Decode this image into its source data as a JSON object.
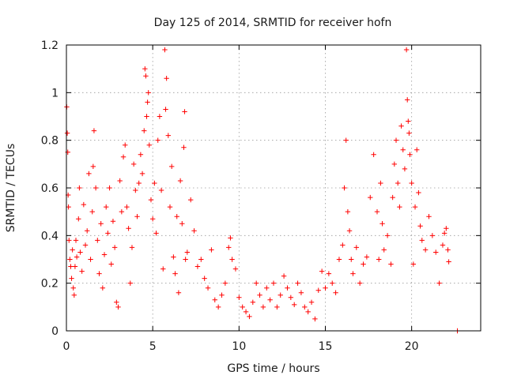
{
  "chart_data": {
    "type": "scatter",
    "title": "Day 125 of 2014, SRMTID for receiver hofn",
    "xlabel": "GPS time / hours",
    "ylabel": "SRMTID / TECUs",
    "xlim": [
      0,
      24
    ],
    "ylim": [
      0,
      1.2
    ],
    "x_ticks": [
      0,
      5,
      10,
      15,
      20
    ],
    "x_tick_labels": [
      "0",
      "5",
      "10",
      "15",
      "20"
    ],
    "y_ticks": [
      0,
      0.2,
      0.4,
      0.6,
      0.8,
      1,
      1.2
    ],
    "y_tick_labels": [
      "0",
      "0.2",
      "0.4",
      "0.6",
      "0.8",
      "1",
      "1.2"
    ],
    "grid": true,
    "marker": "+",
    "color": "#ff0000",
    "series": [
      {
        "name": "SRMTID",
        "points": [
          [
            0.02,
            0.94
          ],
          [
            0.05,
            0.83
          ],
          [
            0.08,
            0.75
          ],
          [
            0.1,
            0.57
          ],
          [
            0.12,
            0.52
          ],
          [
            0.15,
            0.38
          ],
          [
            0.2,
            0.3
          ],
          [
            0.25,
            0.27
          ],
          [
            0.3,
            0.22
          ],
          [
            0.35,
            0.34
          ],
          [
            0.4,
            0.18
          ],
          [
            0.45,
            0.15
          ],
          [
            0.5,
            0.27
          ],
          [
            0.55,
            0.38
          ],
          [
            0.6,
            0.31
          ],
          [
            0.7,
            0.47
          ],
          [
            0.75,
            0.6
          ],
          [
            0.8,
            0.33
          ],
          [
            0.9,
            0.25
          ],
          [
            1.0,
            0.53
          ],
          [
            1.1,
            0.36
          ],
          [
            1.2,
            0.42
          ],
          [
            1.3,
            0.66
          ],
          [
            1.4,
            0.3
          ],
          [
            1.5,
            0.5
          ],
          [
            1.55,
            0.69
          ],
          [
            1.6,
            0.84
          ],
          [
            1.7,
            0.6
          ],
          [
            1.8,
            0.38
          ],
          [
            1.9,
            0.24
          ],
          [
            2.0,
            0.45
          ],
          [
            2.1,
            0.18
          ],
          [
            2.2,
            0.32
          ],
          [
            2.3,
            0.52
          ],
          [
            2.4,
            0.41
          ],
          [
            2.5,
            0.6
          ],
          [
            2.6,
            0.28
          ],
          [
            2.7,
            0.46
          ],
          [
            2.8,
            0.35
          ],
          [
            2.9,
            0.12
          ],
          [
            3.0,
            0.1
          ],
          [
            3.1,
            0.63
          ],
          [
            3.2,
            0.5
          ],
          [
            3.3,
            0.73
          ],
          [
            3.4,
            0.78
          ],
          [
            3.5,
            0.52
          ],
          [
            3.6,
            0.43
          ],
          [
            3.7,
            0.2
          ],
          [
            3.8,
            0.35
          ],
          [
            3.9,
            0.7
          ],
          [
            4.0,
            0.59
          ],
          [
            4.1,
            0.48
          ],
          [
            4.2,
            0.62
          ],
          [
            4.3,
            0.74
          ],
          [
            4.4,
            0.66
          ],
          [
            4.5,
            0.84
          ],
          [
            4.55,
            1.1
          ],
          [
            4.6,
            1.07
          ],
          [
            4.65,
            0.9
          ],
          [
            4.7,
            0.96
          ],
          [
            4.75,
            1.0
          ],
          [
            4.8,
            0.78
          ],
          [
            4.9,
            0.55
          ],
          [
            5.0,
            0.47
          ],
          [
            5.1,
            0.62
          ],
          [
            5.2,
            0.41
          ],
          [
            5.3,
            0.8
          ],
          [
            5.4,
            0.9
          ],
          [
            5.5,
            0.59
          ],
          [
            5.6,
            0.26
          ],
          [
            5.7,
            1.18
          ],
          [
            5.75,
            0.93
          ],
          [
            5.8,
            1.06
          ],
          [
            5.9,
            0.82
          ],
          [
            6.0,
            0.52
          ],
          [
            6.1,
            0.69
          ],
          [
            6.2,
            0.31
          ],
          [
            6.3,
            0.24
          ],
          [
            6.4,
            0.48
          ],
          [
            6.5,
            0.16
          ],
          [
            6.6,
            0.63
          ],
          [
            6.7,
            0.45
          ],
          [
            6.8,
            0.77
          ],
          [
            6.85,
            0.92
          ],
          [
            6.9,
            0.3
          ],
          [
            7.0,
            0.33
          ],
          [
            7.2,
            0.55
          ],
          [
            7.4,
            0.42
          ],
          [
            7.6,
            0.27
          ],
          [
            7.8,
            0.3
          ],
          [
            8.0,
            0.22
          ],
          [
            8.2,
            0.18
          ],
          [
            8.4,
            0.34
          ],
          [
            8.6,
            0.13
          ],
          [
            8.8,
            0.1
          ],
          [
            9.0,
            0.15
          ],
          [
            9.2,
            0.2
          ],
          [
            9.4,
            0.35
          ],
          [
            9.5,
            0.39
          ],
          [
            9.6,
            0.3
          ],
          [
            9.8,
            0.26
          ],
          [
            10.0,
            0.14
          ],
          [
            10.2,
            0.1
          ],
          [
            10.4,
            0.08
          ],
          [
            10.6,
            0.06
          ],
          [
            10.8,
            0.12
          ],
          [
            11.0,
            0.2
          ],
          [
            11.2,
            0.15
          ],
          [
            11.4,
            0.1
          ],
          [
            11.6,
            0.18
          ],
          [
            11.8,
            0.13
          ],
          [
            12.0,
            0.2
          ],
          [
            12.2,
            0.1
          ],
          [
            12.4,
            0.15
          ],
          [
            12.6,
            0.23
          ],
          [
            12.8,
            0.18
          ],
          [
            13.0,
            0.14
          ],
          [
            13.2,
            0.11
          ],
          [
            13.4,
            0.2
          ],
          [
            13.6,
            0.16
          ],
          [
            13.8,
            0.1
          ],
          [
            14.0,
            0.08
          ],
          [
            14.2,
            0.12
          ],
          [
            14.4,
            0.05
          ],
          [
            14.6,
            0.17
          ],
          [
            14.8,
            0.25
          ],
          [
            15.0,
            0.18
          ],
          [
            15.2,
            0.24
          ],
          [
            15.4,
            0.2
          ],
          [
            15.6,
            0.16
          ],
          [
            15.8,
            0.3
          ],
          [
            16.0,
            0.36
          ],
          [
            16.1,
            0.6
          ],
          [
            16.2,
            0.8
          ],
          [
            16.3,
            0.5
          ],
          [
            16.4,
            0.42
          ],
          [
            16.5,
            0.3
          ],
          [
            16.6,
            0.24
          ],
          [
            16.8,
            0.35
          ],
          [
            17.0,
            0.2
          ],
          [
            17.2,
            0.28
          ],
          [
            17.4,
            0.31
          ],
          [
            17.6,
            0.56
          ],
          [
            17.8,
            0.74
          ],
          [
            18.0,
            0.5
          ],
          [
            18.1,
            0.3
          ],
          [
            18.2,
            0.62
          ],
          [
            18.3,
            0.45
          ],
          [
            18.4,
            0.34
          ],
          [
            18.6,
            0.4
          ],
          [
            18.8,
            0.28
          ],
          [
            18.9,
            0.56
          ],
          [
            19.0,
            0.7
          ],
          [
            19.1,
            0.8
          ],
          [
            19.2,
            0.62
          ],
          [
            19.3,
            0.52
          ],
          [
            19.4,
            0.86
          ],
          [
            19.5,
            0.76
          ],
          [
            19.6,
            0.68
          ],
          [
            19.7,
            1.18
          ],
          [
            19.75,
            0.97
          ],
          [
            19.8,
            0.88
          ],
          [
            19.85,
            0.83
          ],
          [
            19.9,
            0.74
          ],
          [
            20.0,
            0.62
          ],
          [
            20.1,
            0.28
          ],
          [
            20.2,
            0.52
          ],
          [
            20.3,
            0.76
          ],
          [
            20.4,
            0.58
          ],
          [
            20.5,
            0.44
          ],
          [
            20.6,
            0.38
          ],
          [
            20.8,
            0.34
          ],
          [
            21.0,
            0.48
          ],
          [
            21.2,
            0.4
          ],
          [
            21.4,
            0.33
          ],
          [
            21.6,
            0.2
          ],
          [
            21.8,
            0.36
          ],
          [
            21.9,
            0.41
          ],
          [
            22.0,
            0.43
          ],
          [
            22.1,
            0.34
          ],
          [
            22.15,
            0.29
          ],
          [
            22.65,
            0.0
          ]
        ]
      }
    ]
  }
}
